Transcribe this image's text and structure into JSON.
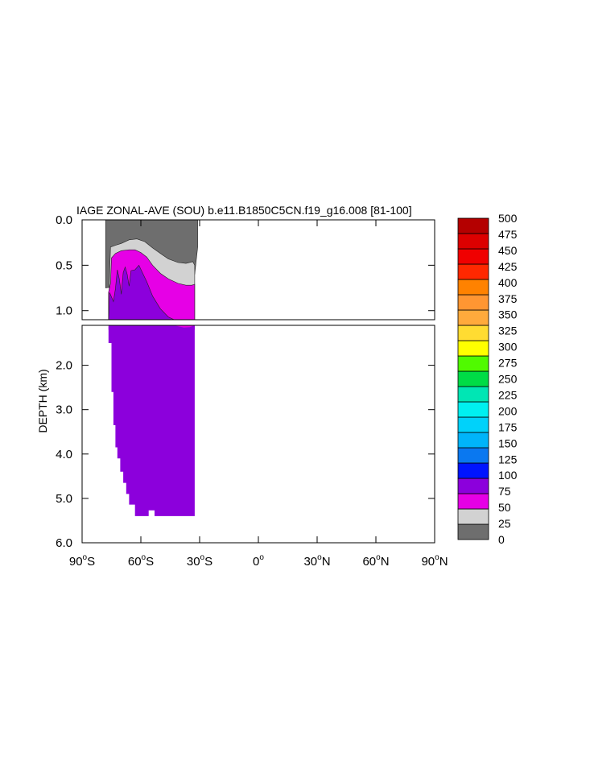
{
  "chart_data": {
    "type": "heatmap",
    "title": "IAGE ZONAL-AVE (SOU) b.e11.B1850C5CN.f19_g16.008 [81-100]",
    "ylabel": "DEPTH (km)",
    "xlim": [
      -90,
      90
    ],
    "ylim": [
      0,
      6
    ],
    "y_axis_inverted": true,
    "panels": [
      {
        "name": "upper",
        "ylim": [
          0,
          1.1
        ],
        "yticks": [
          {
            "v": 0,
            "label": "0.0"
          },
          {
            "v": 0.5,
            "label": "0.5"
          },
          {
            "v": 1.0,
            "label": "1.0"
          }
        ]
      },
      {
        "name": "lower",
        "ylim": [
          1.1,
          6.0
        ],
        "yticks": [
          {
            "v": 2,
            "label": "2.0"
          },
          {
            "v": 3,
            "label": "3.0"
          },
          {
            "v": 4,
            "label": "4.0"
          },
          {
            "v": 5,
            "label": "5.0"
          },
          {
            "v": 6,
            "label": "6.0"
          }
        ]
      }
    ],
    "xticks": [
      {
        "v": -90,
        "num": "90",
        "sup": "o",
        "hem": "S"
      },
      {
        "v": -60,
        "num": "60",
        "sup": "o",
        "hem": "S"
      },
      {
        "v": -30,
        "num": "30",
        "sup": "o",
        "hem": "S"
      },
      {
        "v": 0,
        "num": "0",
        "sup": "o",
        "hem": ""
      },
      {
        "v": 30,
        "num": "30",
        "sup": "o",
        "hem": "N"
      },
      {
        "v": 60,
        "num": "60",
        "sup": "o",
        "hem": "N"
      },
      {
        "v": 90,
        "num": "90",
        "sup": "o",
        "hem": "N"
      }
    ],
    "colorbar": {
      "levels": [
        "0",
        "25",
        "50",
        "75",
        "100",
        "125",
        "150",
        "175",
        "200",
        "225",
        "250",
        "275",
        "300",
        "325",
        "350",
        "375",
        "400",
        "425",
        "450",
        "475",
        "500"
      ],
      "colors": [
        "#6e6e6e",
        "#d2d2d2",
        "#e600e6",
        "#8c00dc",
        "#0014ff",
        "#0a78f0",
        "#00b4fa",
        "#00d2fa",
        "#00f0f0",
        "#00e6b4",
        "#00dc46",
        "#50fa00",
        "#ffff00",
        "#ffdc32",
        "#ffaa3c",
        "#ff9632",
        "#ff8200",
        "#ff2800",
        "#f00000",
        "#dc0000",
        "#b40000"
      ]
    },
    "regions": [
      {
        "value_range": "0-25",
        "color": "#6e6e6e",
        "polygon": [
          [
            -78,
            0.75
          ],
          [
            -78,
            0
          ],
          [
            -31,
            0
          ],
          [
            -31,
            0.3
          ],
          [
            -32.5,
            0.6
          ],
          [
            -78,
            0.75
          ]
        ]
      },
      {
        "value_range": "25-50",
        "color": "#d2d2d2",
        "polygon": [
          [
            -76.5,
            1.0
          ],
          [
            -75.5,
            0.3
          ],
          [
            -73,
            0.28
          ],
          [
            -70,
            0.26
          ],
          [
            -66,
            0.22
          ],
          [
            -62,
            0.21
          ],
          [
            -58,
            0.24
          ],
          [
            -54,
            0.31
          ],
          [
            -50,
            0.37
          ],
          [
            -46,
            0.43
          ],
          [
            -41,
            0.47
          ],
          [
            -37,
            0.48
          ],
          [
            -33.5,
            0.46
          ],
          [
            -32.5,
            0.5
          ],
          [
            -32.5,
            1.2
          ],
          [
            -76.5,
            1.2
          ]
        ]
      },
      {
        "value_range": "50-75",
        "color": "#e600e6",
        "polygon": [
          [
            -76.5,
            1.0
          ],
          [
            -76.5,
            0.8
          ],
          [
            -75.5,
            0.7
          ],
          [
            -75,
            0.42
          ],
          [
            -73,
            0.37
          ],
          [
            -70,
            0.34
          ],
          [
            -66,
            0.33
          ],
          [
            -63,
            0.33
          ],
          [
            -60,
            0.36
          ],
          [
            -57,
            0.41
          ],
          [
            -54,
            0.5
          ],
          [
            -50,
            0.59
          ],
          [
            -46,
            0.65
          ],
          [
            -41,
            0.7
          ],
          [
            -37,
            0.72
          ],
          [
            -34,
            0.72
          ],
          [
            -32.5,
            0.71
          ],
          [
            -32.5,
            1.2
          ],
          [
            -76.5,
            1.2
          ]
        ]
      },
      {
        "value_range": "75-100",
        "color": "#8c00dc",
        "polygon": [
          [
            -76.5,
            1.15
          ],
          [
            -76,
            0.8
          ],
          [
            -75,
            0.85
          ],
          [
            -74,
            0.9
          ],
          [
            -73,
            0.76
          ],
          [
            -72,
            0.55
          ],
          [
            -71,
            0.65
          ],
          [
            -70,
            0.82
          ],
          [
            -69,
            0.58
          ],
          [
            -68,
            0.52
          ],
          [
            -67,
            0.6
          ],
          [
            -66,
            0.73
          ],
          [
            -65,
            0.56
          ],
          [
            -63,
            0.55
          ],
          [
            -61,
            0.5
          ],
          [
            -59,
            0.59
          ],
          [
            -57,
            0.68
          ],
          [
            -54,
            0.84
          ],
          [
            -50,
            0.98
          ],
          [
            -46,
            1.07
          ],
          [
            -42,
            1.11
          ],
          [
            -38,
            1.15
          ],
          [
            -35,
            1.14
          ],
          [
            -32.5,
            1.1
          ],
          [
            -32.5,
            1.6
          ],
          [
            -32.5,
            5.4
          ],
          [
            -53,
            5.4
          ],
          [
            -53,
            5.27
          ],
          [
            -56,
            5.27
          ],
          [
            -56,
            5.4
          ],
          [
            -63,
            5.4
          ],
          [
            -63,
            5.14
          ],
          [
            -66,
            5.14
          ],
          [
            -66,
            4.9
          ],
          [
            -67.5,
            4.9
          ],
          [
            -67.5,
            4.65
          ],
          [
            -69,
            4.65
          ],
          [
            -69,
            4.4
          ],
          [
            -70.5,
            4.4
          ],
          [
            -70.5,
            4.1
          ],
          [
            -72,
            4.1
          ],
          [
            -72,
            3.85
          ],
          [
            -73,
            3.85
          ],
          [
            -73,
            3.35
          ],
          [
            -74,
            3.35
          ],
          [
            -74,
            2.6
          ],
          [
            -75,
            2.6
          ],
          [
            -75,
            1.5
          ],
          [
            -76.5,
            1.5
          ]
        ]
      }
    ]
  }
}
